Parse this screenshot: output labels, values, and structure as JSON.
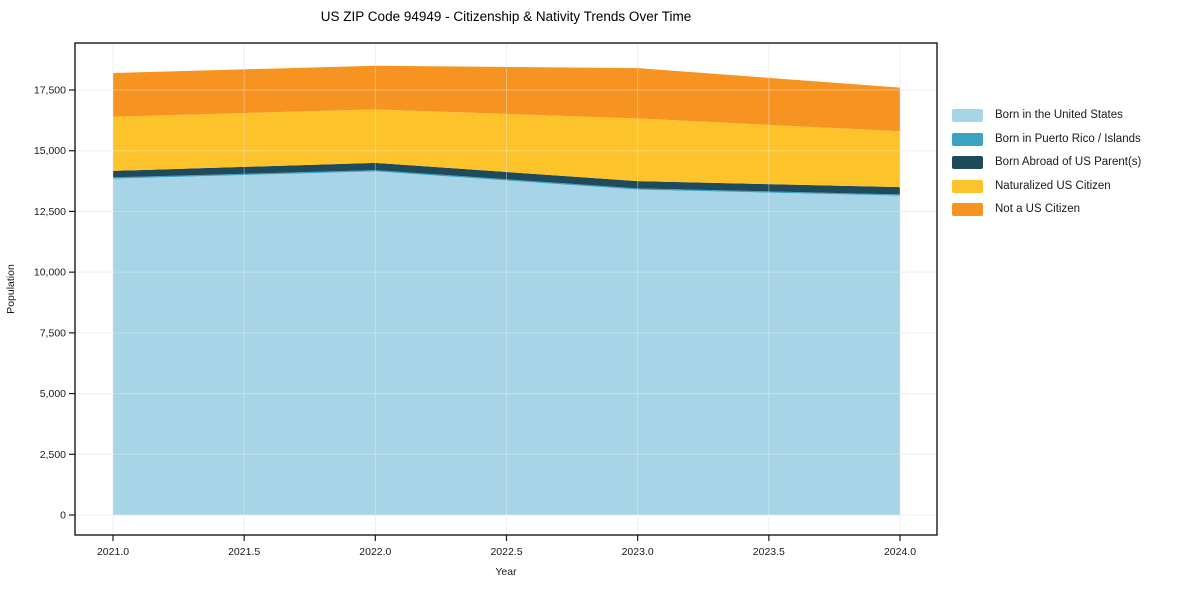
{
  "title": "US ZIP Code 94949 - Citizenship & Nativity Trends Over Time",
  "axes": {
    "x_label": "Year",
    "y_label": "Population",
    "x_ticks": [
      "2021.0",
      "2021.5",
      "2022.0",
      "2022.5",
      "2023.0",
      "2023.5",
      "2024.0"
    ],
    "y_ticks": [
      "0",
      "2,500",
      "5,000",
      "7,500",
      "10,000",
      "12,500",
      "15,000",
      "17,500"
    ]
  },
  "chart_data": {
    "type": "area",
    "stacked": true,
    "title": "US ZIP Code 94949 - Citizenship & Nativity Trends Over Time",
    "xlabel": "Year",
    "ylabel": "Population",
    "x": [
      2021,
      2022,
      2023,
      2024
    ],
    "x_tick_values": [
      2021,
      2021.5,
      2022,
      2022.5,
      2023,
      2023.5,
      2024
    ],
    "y_tick_values": [
      0,
      2500,
      5000,
      7500,
      10000,
      12500,
      15000,
      17500
    ],
    "x_range": [
      2021,
      2024
    ],
    "y_range": [
      0,
      18530
    ],
    "grid": true,
    "legend_position": "right",
    "series": [
      {
        "name": "Born in the United States",
        "color": "#A8D4E8",
        "values": [
          13850,
          14150,
          13400,
          13150
        ]
      },
      {
        "name": "Born in Puerto Rico / Islands",
        "color": "#3AA3C2",
        "values": [
          50,
          50,
          50,
          50
        ]
      },
      {
        "name": "Born Abroad of US Parent(s)",
        "color": "#1F4A5C",
        "values": [
          270,
          300,
          300,
          300
        ]
      },
      {
        "name": "Naturalized US Citizen",
        "color": "#FDC32B",
        "values": [
          2230,
          2200,
          2580,
          2300
        ]
      },
      {
        "name": "Not a US Citizen",
        "color": "#F79421",
        "values": [
          1800,
          1800,
          2070,
          1800
        ]
      }
    ],
    "stacked_totals": [
      18200,
      18500,
      18400,
      17600
    ]
  },
  "colors": {
    "gridline": "#ededed",
    "spine": "#1a1a1a",
    "background": "#ffffff"
  }
}
